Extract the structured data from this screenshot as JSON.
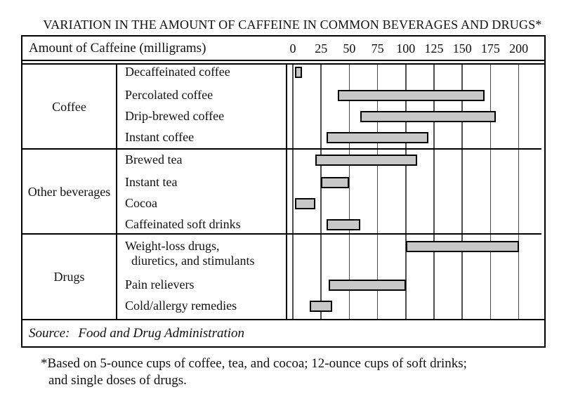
{
  "title": "VARIATION IN THE AMOUNT OF CAFFEINE IN COMMON BEVERAGES AND DRUGS*",
  "header": {
    "label": "Amount of Caffeine (milligrams)",
    "ticks": [
      0,
      25,
      50,
      75,
      100,
      125,
      150,
      175,
      200
    ]
  },
  "source": {
    "label": "Source:",
    "text": "Food and Drug Administration"
  },
  "footnote": {
    "lines": [
      "*Based on 5-ounce cups of coffee, tea, and cocoa; 12-ounce cups of soft drinks;",
      "and single doses of drugs."
    ]
  },
  "colors": {
    "bar_fill": "#c8c8c8",
    "bar_border": "#000000",
    "gridline": "#4e4e4e",
    "text": "#101010"
  },
  "chart_data": {
    "type": "bar",
    "subtype": "horizontal-range-bars",
    "title": "VARIATION IN THE AMOUNT OF CAFFEINE IN COMMON BEVERAGES AND DRUGS*",
    "xlabel": "Amount of Caffeine (milligrams)",
    "xlim": [
      0,
      223
    ],
    "x_ticks": [
      0,
      25,
      50,
      75,
      100,
      125,
      150,
      175,
      200
    ],
    "grid": "vertical-on",
    "units": "milligrams of caffeine (range shown as bar from min to max)",
    "groups": [
      {
        "label": "Coffee",
        "items": [
          {
            "label_lines": [
              "Decaffeinated coffee"
            ],
            "range_mg": [
              2,
              8
            ]
          },
          {
            "label_lines": [
              "Percolated coffee"
            ],
            "range_mg": [
              40,
              170
            ]
          },
          {
            "label_lines": [
              "Drip-brewed coffee"
            ],
            "range_mg": [
              60,
              180
            ]
          },
          {
            "label_lines": [
              "Instant coffee"
            ],
            "range_mg": [
              30,
              120
            ]
          }
        ]
      },
      {
        "label": "Other beverages",
        "items": [
          {
            "label_lines": [
              "Brewed tea"
            ],
            "range_mg": [
              20,
              110
            ]
          },
          {
            "label_lines": [
              "Instant tea"
            ],
            "range_mg": [
              25,
              50
            ]
          },
          {
            "label_lines": [
              "Cocoa"
            ],
            "range_mg": [
              2,
              20
            ]
          },
          {
            "label_lines": [
              "Caffeinated soft drinks"
            ],
            "range_mg": [
              30,
              60
            ]
          }
        ]
      },
      {
        "label": "Drugs",
        "items": [
          {
            "label_lines": [
              "Weight-loss drugs,",
              "diuretics, and stimulants"
            ],
            "range_mg": [
              100,
              200
            ]
          },
          {
            "label_lines": [
              "Pain relievers"
            ],
            "range_mg": [
              32,
              100
            ]
          },
          {
            "label_lines": [
              "Cold/allergy remedies"
            ],
            "range_mg": [
              15,
              35
            ]
          }
        ]
      }
    ],
    "source": "Food and Drug Administration",
    "footnote": "*Based on 5-ounce cups of coffee, tea, and cocoa; 12-ounce cups of soft drinks; and single doses of drugs."
  }
}
